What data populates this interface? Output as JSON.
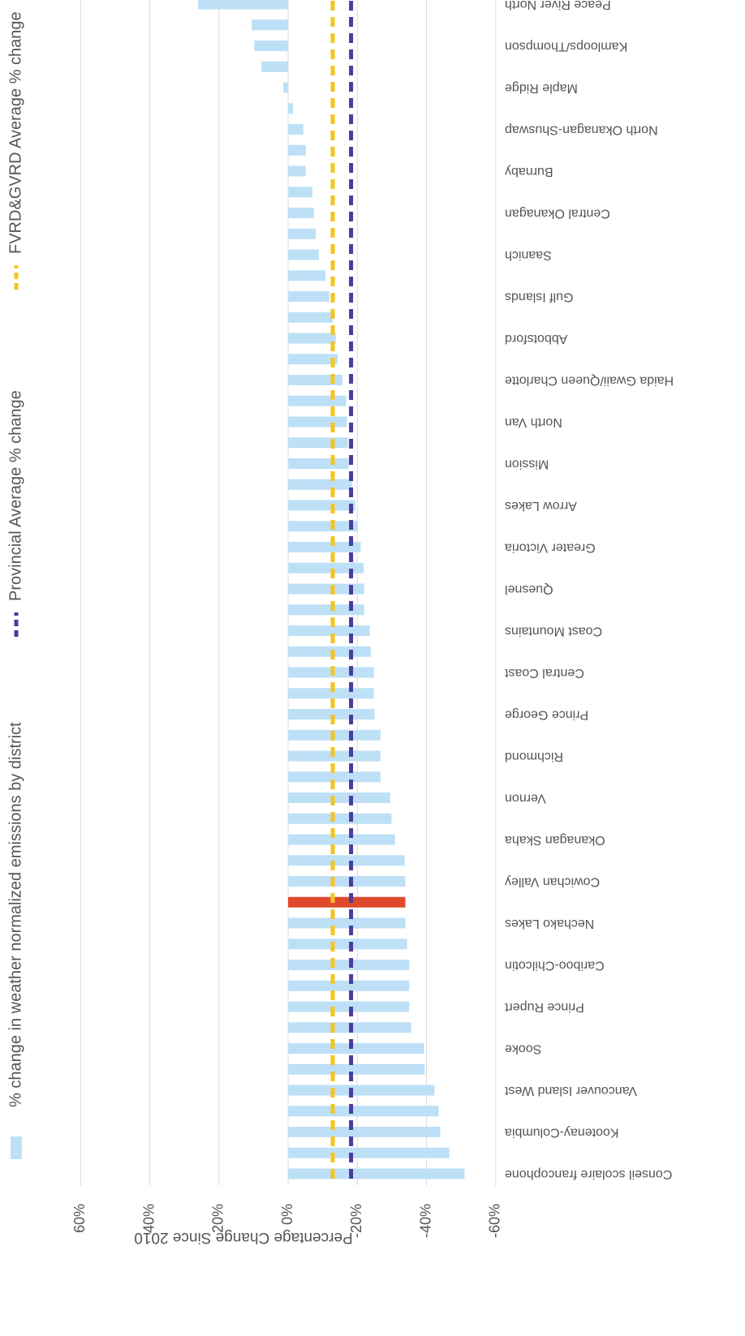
{
  "chart_data": {
    "type": "bar",
    "y_axis_label": "Percentage Change Since 2010",
    "categories": [
      "Conseil scolaire francophone",
      null,
      "Kootenay-Columbia",
      null,
      "Vancouver Island West",
      null,
      "Sooke",
      null,
      "Prince Rupert",
      null,
      "Cariboo-Chilcotin",
      null,
      "Nechako Lakes",
      null,
      "Cowichan Valley",
      null,
      "Okanagan Skaha",
      null,
      "Vernon",
      null,
      "Richmond",
      null,
      "Prince George",
      null,
      "Central Coast",
      null,
      "Coast Mountains",
      null,
      "Quesnel",
      null,
      "Greater Victoria",
      null,
      "Arrow Lakes",
      null,
      "Mission",
      null,
      "North Van",
      null,
      "Haida Gwaii/Queen Charlotte",
      null,
      "Abbotsford",
      null,
      "Gulf Islands",
      null,
      "Saanich",
      null,
      "Central Okanagan",
      null,
      "Burnaby",
      null,
      "North Okanagan-Shuswap",
      null,
      "Maple Ridge",
      null,
      "Kamloops/Thompson",
      null,
      "Peace River North"
    ],
    "series": [
      {
        "name": "% change in weather normalized emissions by district",
        "color": "#bde0f7",
        "highlight": {
          "index": 13,
          "color": "#e04a2c"
        },
        "values": [
          -51,
          -46.6,
          -44,
          -43.5,
          -42.3,
          -39.5,
          -39.3,
          -35.6,
          -35,
          -35,
          -35,
          -34.4,
          -33.9,
          -33.9,
          -33.9,
          -33.7,
          -30.9,
          -29.9,
          -29.5,
          -26.7,
          -26.7,
          -26.7,
          -25,
          -24.8,
          -24.8,
          -23.9,
          -23.6,
          -22,
          -22,
          -21.8,
          -21,
          -20.1,
          -19.4,
          -18.5,
          -17.5,
          -17.3,
          -17,
          -16.8,
          -15.7,
          -14.3,
          -13.8,
          -12.9,
          -11.9,
          -10.8,
          -8.9,
          -8,
          -7.5,
          -7,
          -5.1,
          -5.1,
          -4.4,
          -1.4,
          1.4,
          7.7,
          9.8,
          10.5,
          26
        ]
      }
    ],
    "reference_lines": [
      {
        "name": "Provincial Average % change",
        "value": -18.2,
        "color": "#4b3c9c"
      },
      {
        "name": "FVRD&GVRD Average % change",
        "value": -12.9,
        "color": "#f5c51e"
      }
    ],
    "ylim": [
      -60,
      60
    ],
    "yticks": [
      {
        "value": 60,
        "label": "60%"
      },
      {
        "value": 40,
        "label": "40%"
      },
      {
        "value": 20,
        "label": "20%"
      },
      {
        "value": 0,
        "label": "0%"
      },
      {
        "value": -20,
        "label": "-20%"
      },
      {
        "value": -40,
        "label": "-40%"
      },
      {
        "value": -60,
        "label": "-60%"
      }
    ],
    "grid": true
  }
}
